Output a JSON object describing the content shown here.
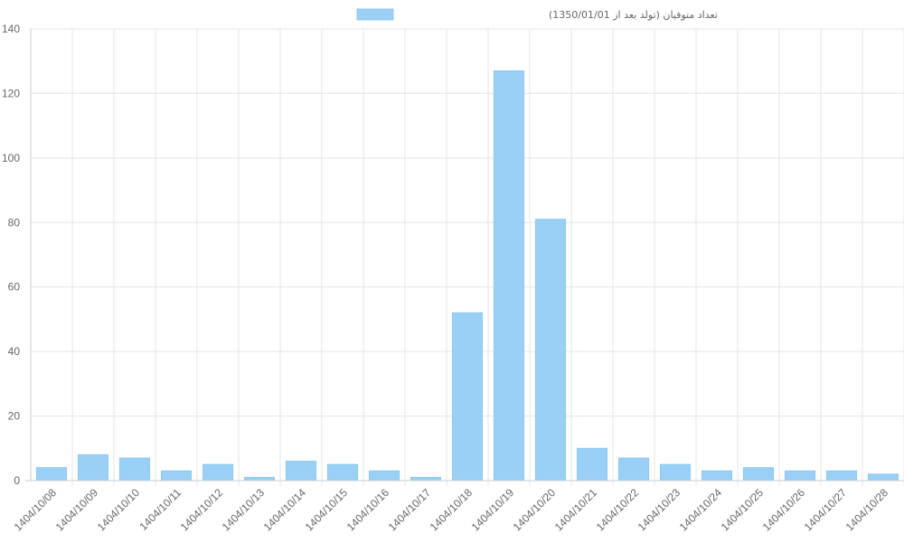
{
  "chart_data": {
    "type": "bar",
    "legend": {
      "label": "تعداد متوفیان (تولد بعد از 1350/01/01)",
      "position": "top-center"
    },
    "categories": [
      "1404/10/08",
      "1404/10/09",
      "1404/10/10",
      "1404/10/11",
      "1404/10/12",
      "1404/10/13",
      "1404/10/14",
      "1404/10/15",
      "1404/10/16",
      "1404/10/17",
      "1404/10/18",
      "1404/10/19",
      "1404/10/20",
      "1404/10/21",
      "1404/10/22",
      "1404/10/23",
      "1404/10/24",
      "1404/10/25",
      "1404/10/26",
      "1404/10/27",
      "1404/10/28"
    ],
    "series": [
      {
        "name": "تعداد متوفیان (تولد بعد از 1350/01/01)",
        "values": [
          4,
          8,
          7,
          3,
          5,
          1,
          6,
          5,
          3,
          1,
          52,
          127,
          81,
          10,
          7,
          5,
          3,
          4,
          3,
          3,
          2
        ]
      }
    ],
    "ylim": [
      0,
      140
    ],
    "yticks": [
      "0",
      "20",
      "40",
      "60",
      "80",
      "100",
      "120",
      "140"
    ],
    "ytick_values": [
      0,
      20,
      40,
      60,
      80,
      100,
      120,
      140
    ],
    "grid": true,
    "colors": {
      "bar_fill": "#9ad0f5",
      "bar_stroke": "#8cc9f2",
      "grid": "#e5e5e5",
      "axis": "#cccccc",
      "text": "#666666"
    }
  }
}
